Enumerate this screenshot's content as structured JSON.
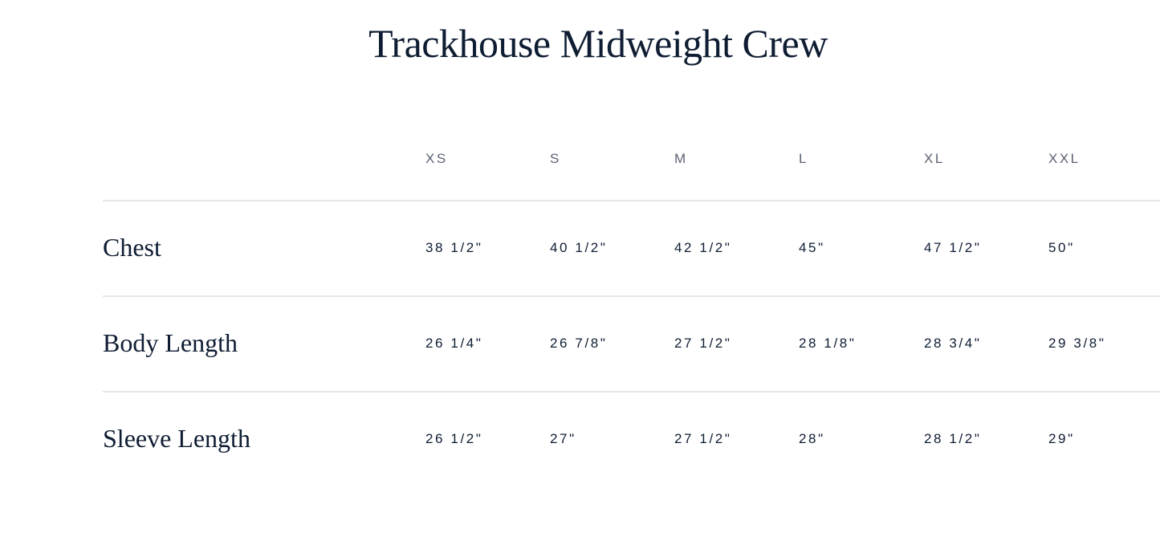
{
  "title": "Trackhouse Midweight Crew",
  "table": {
    "sizes": [
      "XS",
      "S",
      "M",
      "L",
      "XL",
      "XXL"
    ],
    "rows": [
      {
        "label": "Chest",
        "values": [
          "38 1/2\"",
          "40 1/2\"",
          "42 1/2\"",
          "45\"",
          "47 1/2\"",
          "50\""
        ]
      },
      {
        "label": "Body Length",
        "values": [
          "26 1/4\"",
          "26 7/8\"",
          "27 1/2\"",
          "28 1/8\"",
          "28 3/4\"",
          "29 3/8\""
        ]
      },
      {
        "label": "Sleeve Length",
        "values": [
          "26 1/2\"",
          "27\"",
          "27 1/2\"",
          "28\"",
          "28 1/2\"",
          "29\""
        ]
      }
    ]
  },
  "colors": {
    "text": "#0f1d33",
    "header": "#5a6272",
    "divider": "#e6e7e9"
  }
}
